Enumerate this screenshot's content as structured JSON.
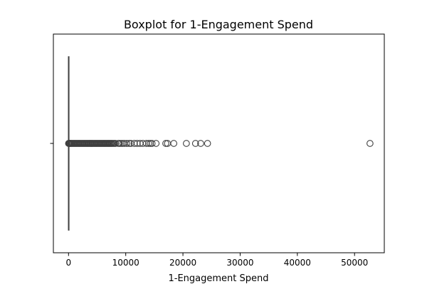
{
  "chart_data": {
    "type": "box",
    "title": "Boxplot for 1-Engagement Spend",
    "xlabel": "1-Engagement Spend",
    "ylabel": "",
    "xlim": [
      -2650,
      55200
    ],
    "xticks": [
      0,
      10000,
      20000,
      30000,
      40000,
      50000
    ],
    "xtick_labels": [
      "0",
      "10000",
      "20000",
      "30000",
      "40000",
      "50000"
    ],
    "orientation": "horizontal",
    "grid": false,
    "box": {
      "q1": 0,
      "median": 0,
      "q3": 0,
      "whisker_low": 0,
      "whisker_high": 0
    },
    "outliers": [
      10,
      60,
      120,
      200,
      300,
      420,
      550,
      700,
      850,
      1000,
      1150,
      1300,
      1450,
      1600,
      1750,
      1900,
      2050,
      2200,
      2350,
      2500,
      2650,
      2800,
      2950,
      3100,
      3250,
      3400,
      3550,
      3700,
      3850,
      4000,
      4150,
      4300,
      4450,
      4600,
      4750,
      4900,
      5050,
      5200,
      5350,
      5500,
      5650,
      5800,
      5950,
      6100,
      6250,
      6400,
      6550,
      6700,
      6850,
      7000,
      7150,
      7300,
      7450,
      7600,
      7800,
      8000,
      8200,
      8700,
      8900,
      9200,
      9500,
      9800,
      10200,
      10600,
      10900,
      11500,
      12000,
      12500,
      13000,
      13600,
      14000,
      14300,
      14600,
      15300,
      17000,
      17300,
      18400,
      20600,
      22200,
      23100,
      24300,
      52700
    ],
    "colors": {
      "box_edge": "#3f3f3f",
      "outlier_edge": "#3f3f3f",
      "frame": "#000000"
    }
  }
}
